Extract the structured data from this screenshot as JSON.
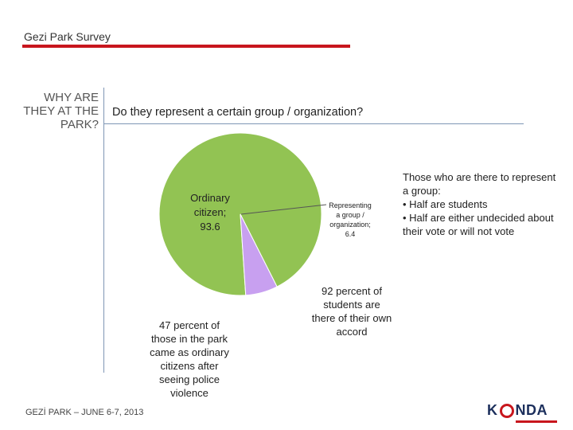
{
  "header": {
    "title": "Gezi Park Survey"
  },
  "section_label": [
    "WHY ARE",
    "THEY AT THE",
    "PARK?"
  ],
  "question": "Do they represent a certain group / organization?",
  "chart_data": {
    "type": "pie",
    "slices": [
      {
        "label": [
          "Ordinary",
          "citizen;",
          "93.6"
        ],
        "value": 93.6,
        "color": "#92c353"
      },
      {
        "label": [
          "Representing",
          "a group /",
          "organization;",
          "6.4"
        ],
        "value": 6.4,
        "color": "#c8a0f0"
      }
    ]
  },
  "notes": {
    "left": [
      "47 percent of",
      "those in the park",
      "came as ordinary",
      "citizens after",
      "seeing police",
      "violence"
    ],
    "right": [
      "92 percent of",
      "students are",
      "there of their own",
      "accord"
    ]
  },
  "side_note": {
    "lines": [
      "Those who are there to represent",
      "a group:",
      "• Half are students",
      "• Half are either undecided about",
      "their vote or will not vote"
    ]
  },
  "footer": "GEZİ PARK – JUNE 6-7, 2013",
  "logo": {
    "text_left": "K",
    "text_right": "NDA"
  },
  "colors": {
    "accent": "#c8161d",
    "rule": "#7f96b5"
  }
}
